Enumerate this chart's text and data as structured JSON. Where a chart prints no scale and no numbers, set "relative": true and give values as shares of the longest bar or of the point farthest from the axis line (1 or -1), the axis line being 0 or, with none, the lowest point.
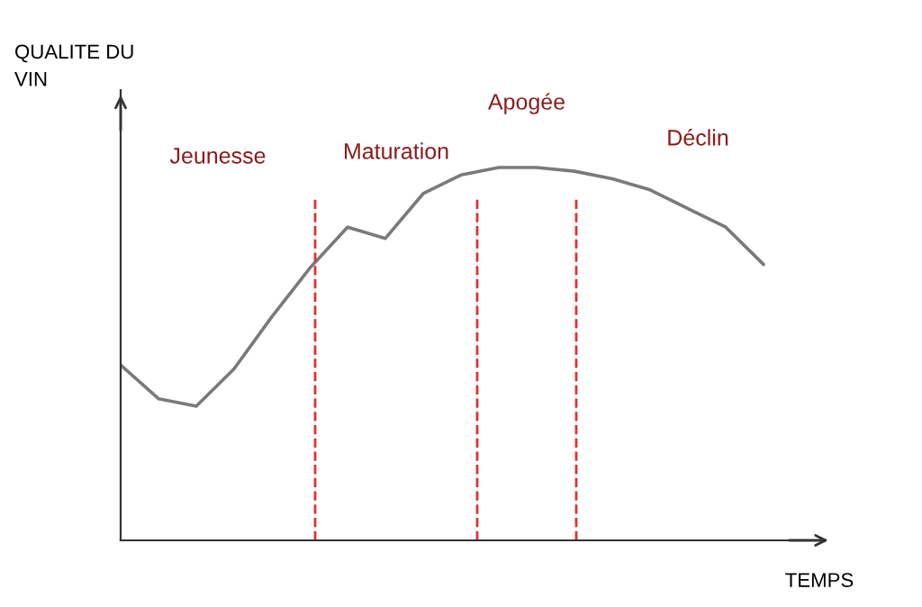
{
  "chart_data": {
    "type": "line",
    "relative": true,
    "xlabel": "TEMPS",
    "ylabel": "QUALITE DU\nVIN",
    "categories": [
      null,
      null,
      null,
      null,
      null,
      null,
      null,
      null,
      null,
      null,
      null,
      null,
      null,
      null,
      null,
      null,
      null,
      null
    ],
    "series": [
      {
        "color": "#7a7a7a",
        "values": [
          0.47,
          0.38,
          0.36,
          0.46,
          0.6,
          0.73,
          0.84,
          0.81,
          0.93,
          0.98,
          1.0,
          1.0,
          0.99,
          0.97,
          0.94,
          0.89,
          0.84,
          0.74
        ]
      }
    ],
    "annotations": [
      "Jeunesse",
      "Maturation",
      "Apogée",
      "Déclin"
    ],
    "line_style": "solid"
  }
}
